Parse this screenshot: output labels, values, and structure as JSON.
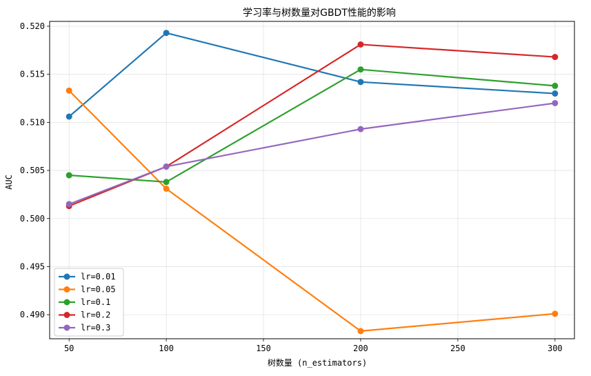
{
  "chart_data": {
    "type": "line",
    "title": "学习率与树数量对GBDT性能的影响",
    "xlabel": "树数量 (n_estimators)",
    "ylabel": "AUC",
    "x": [
      50,
      100,
      200,
      300
    ],
    "xlim": [
      40,
      310
    ],
    "ylim": [
      0.4875,
      0.5205
    ],
    "xticks": [
      50,
      100,
      150,
      200,
      250,
      300
    ],
    "yticks": [
      0.49,
      0.495,
      0.5,
      0.505,
      0.51,
      0.515,
      0.52
    ],
    "grid": true,
    "legend_position": "lower-left",
    "series": [
      {
        "name": "lr=0.01",
        "color": "#1f77b4",
        "values": [
          0.5106,
          0.5193,
          0.5142,
          0.513
        ]
      },
      {
        "name": "lr=0.05",
        "color": "#ff7f0e",
        "values": [
          0.5133,
          0.5031,
          0.4883,
          0.4901
        ]
      },
      {
        "name": "lr=0.1",
        "color": "#2ca02c",
        "values": [
          0.5045,
          0.5038,
          0.5155,
          0.5138
        ]
      },
      {
        "name": "lr=0.2",
        "color": "#d62728",
        "values": [
          0.5013,
          0.5054,
          0.5181,
          0.5168
        ]
      },
      {
        "name": "lr=0.3",
        "color": "#9467bd",
        "values": [
          0.5015,
          0.5054,
          0.5093,
          0.512
        ]
      }
    ]
  }
}
